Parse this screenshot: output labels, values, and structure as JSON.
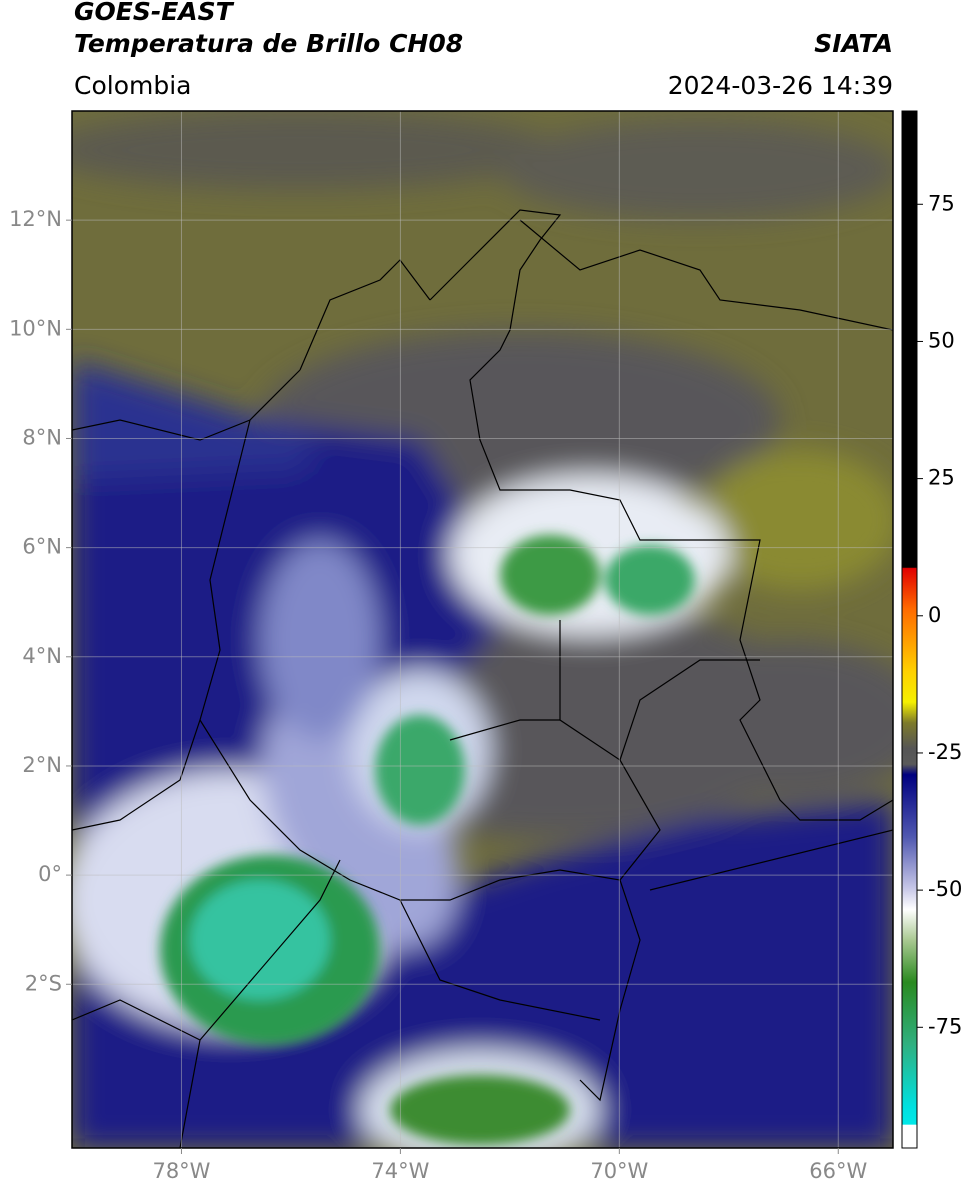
{
  "header": {
    "source": "GOES-EAST",
    "product": "Temperatura de Brillo CH08",
    "agency": "SIATA",
    "region": "Colombia",
    "datetime": "2024-03-26 14:39"
  },
  "map": {
    "xlim": [
      -80,
      -65
    ],
    "ylim": [
      -5,
      14
    ],
    "grid": true,
    "xticks": [
      {
        "value": -78,
        "label": "78°W"
      },
      {
        "value": -74,
        "label": "74°W"
      },
      {
        "value": -70,
        "label": "70°W"
      },
      {
        "value": -66,
        "label": "66°W"
      }
    ],
    "yticks": [
      {
        "value": 12,
        "label": "12°N"
      },
      {
        "value": 10,
        "label": "10°N"
      },
      {
        "value": 8,
        "label": "8°N"
      },
      {
        "value": 6,
        "label": "6°N"
      },
      {
        "value": 4,
        "label": "4°N"
      },
      {
        "value": 2,
        "label": "2°N"
      },
      {
        "value": 0,
        "label": "0°"
      },
      {
        "value": -2,
        "label": "2°S"
      }
    ]
  },
  "colorbar": {
    "lim": [
      -97,
      92
    ],
    "ticks": [
      75,
      50,
      25,
      0,
      -25,
      -50,
      -75
    ]
  }
}
